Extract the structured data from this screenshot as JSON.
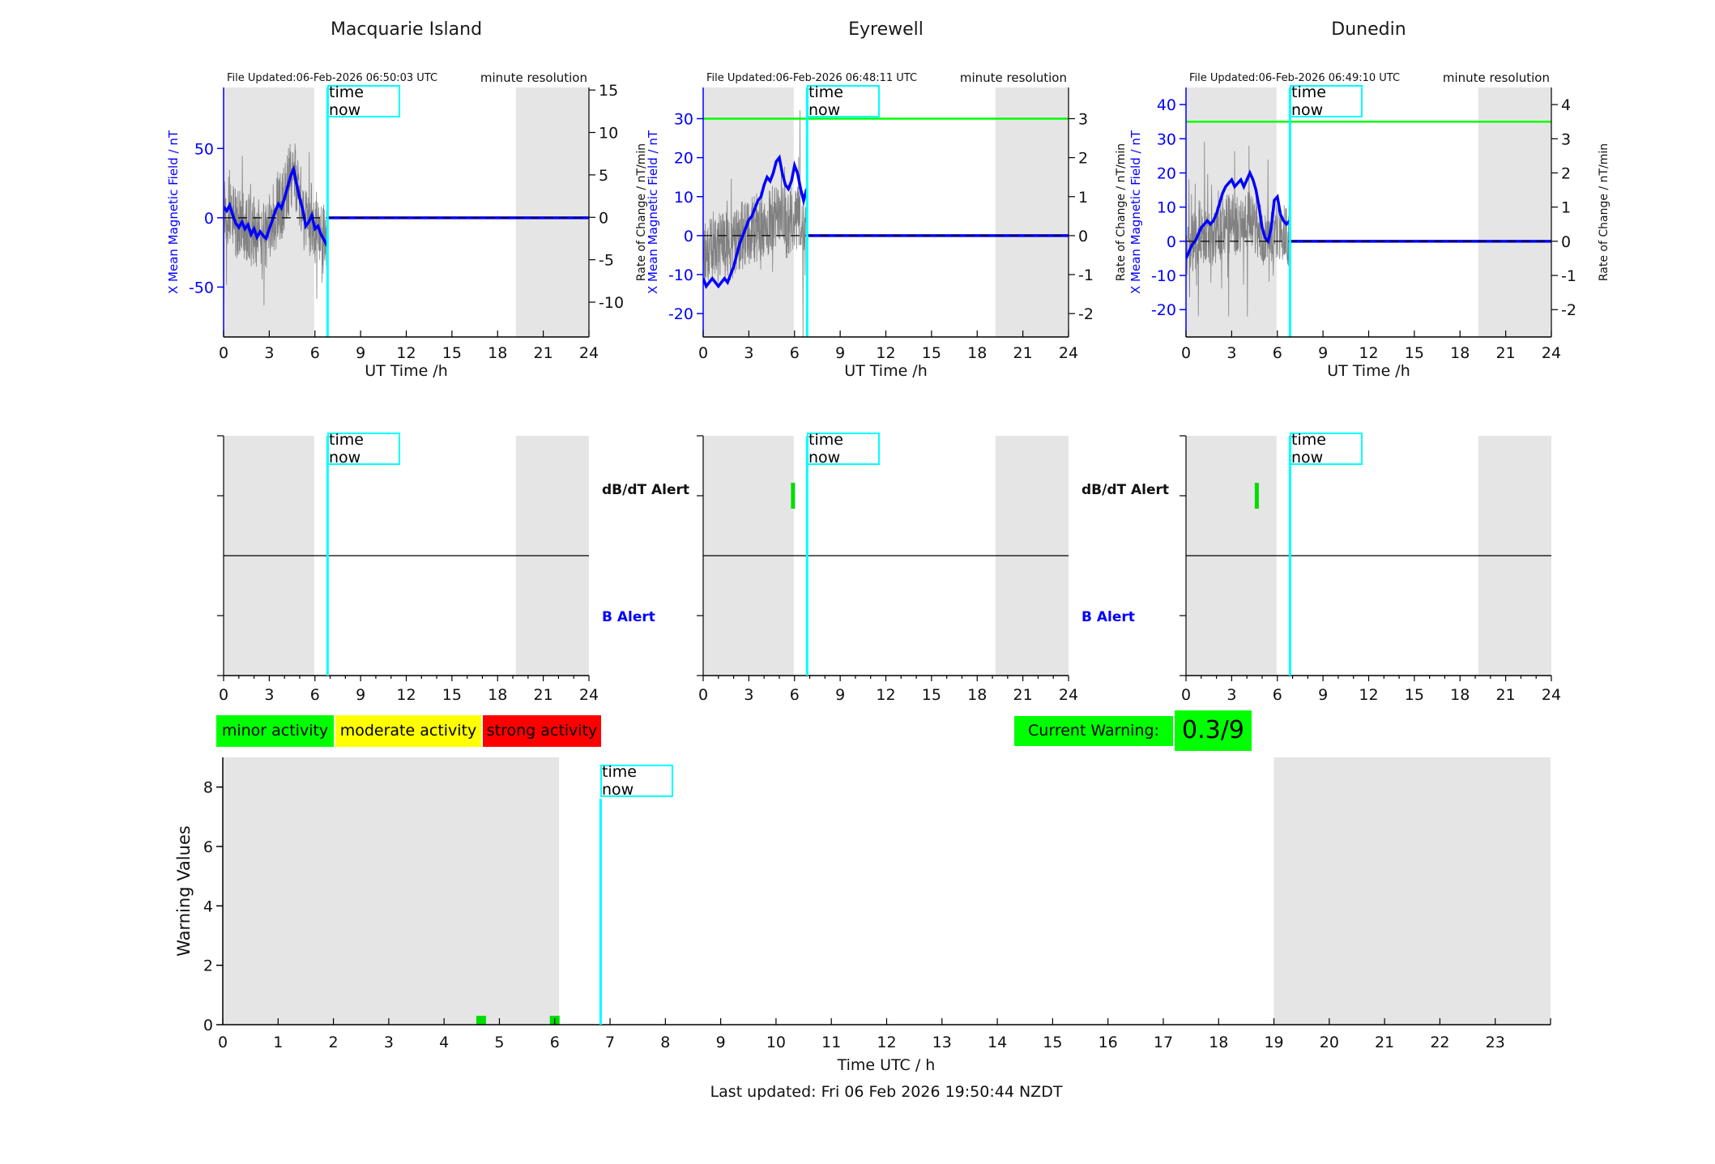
{
  "page": {
    "time_now_label": "time now",
    "footer": {
      "last_updated": "Last updated: Fri 06 Feb 2026 19:50:44 NZDT"
    }
  },
  "chart_data": {
    "type": "line",
    "xlabel": "UT Time /h",
    "x_ticks": [
      0,
      3,
      6,
      9,
      12,
      15,
      18,
      21,
      24
    ],
    "time_now_utc_h": 6.83,
    "shaded_night_hours": [
      [
        0,
        5.95
      ],
      [
        19.2,
        24
      ]
    ],
    "colors": {
      "band": "#e5e5e5",
      "noise": "#808080",
      "mean_field": "#0000ff",
      "zero_line": "#000000",
      "threshold_green": "#00ff00",
      "event_green": "#00dd00",
      "bar_green": "#00dd00",
      "time_now_cyan": "#00ffff",
      "legend_minor": "#00ff00",
      "legend_moderate": "#ffff00",
      "legend_strong": "#ff0000",
      "warning_bg": "#00ff00"
    },
    "stations": [
      {
        "name": "Macquarie Island",
        "file_updated": "File Updated:06-Feb-2026 06:50:03 UTC",
        "resolution_note": "minute resolution",
        "left_axis": {
          "label": "X Mean Magnetic Field / nT",
          "ticks": [
            50,
            0,
            -50
          ],
          "lim": [
            -86,
            94
          ]
        },
        "right_axis": {
          "label": "Rate of Change / nT/min",
          "ticks": [
            15,
            10,
            5,
            0,
            -5,
            -10
          ],
          "lim": [
            -14.1,
            15.3
          ]
        },
        "alert_threshold_nT": null,
        "mean_field_series": {
          "x_start": 0,
          "x_step": 0.2,
          "y": [
            8,
            5,
            9,
            2,
            -4,
            -7,
            -3,
            -8,
            -5,
            -12,
            -8,
            -14,
            -10,
            -13,
            -15,
            -8,
            -2,
            5,
            10,
            7,
            14,
            22,
            30,
            35,
            24,
            14,
            6,
            -6,
            -3,
            2,
            -8,
            -6,
            -12,
            -16,
            -20
          ]
        },
        "value_after_time_now": 0,
        "noise": {
          "seed": 13,
          "amp": 26,
          "spike_amp": 50,
          "spike_prob": 0.06,
          "follow": 1.0
        },
        "alert_panel": {
          "dbdt_label": "dB/dT Alert",
          "b_label": "B Alert",
          "show_labels": true,
          "dbdt_alert_hours": [],
          "b_alert_hours": []
        }
      },
      {
        "name": "Eyrewell",
        "file_updated": "File Updated:06-Feb-2026 06:48:11 UTC",
        "resolution_note": "minute resolution",
        "left_axis": {
          "label": "X Mean Magnetic Field / nT",
          "ticks": [
            30,
            20,
            10,
            0,
            -10,
            -20
          ],
          "lim": [
            -26,
            38
          ]
        },
        "right_axis": {
          "label": "Rate of Change / nT/min",
          "ticks": [
            3,
            2,
            1,
            0,
            -1,
            -2
          ],
          "lim": [
            -2.6,
            3.8
          ]
        },
        "alert_threshold_nT": 30,
        "mean_field_series": {
          "x_start": 0,
          "x_step": 0.2,
          "y": [
            -11,
            -13,
            -12,
            -11,
            -12,
            -13,
            -12,
            -11,
            -12,
            -10,
            -8,
            -5,
            -2,
            0,
            2,
            4,
            5,
            7,
            9,
            10,
            13,
            15,
            14,
            16,
            19,
            20,
            16,
            13,
            12,
            14,
            18,
            16,
            12,
            9,
            12
          ]
        },
        "value_after_time_now": 0,
        "noise": {
          "seed": 29,
          "amp": 9,
          "spike_amp": 22,
          "spike_prob": 0.05,
          "follow": 0.25
        },
        "alert_panel": {
          "dbdt_label": "dB/dT Alert",
          "b_label": "B Alert",
          "show_labels": true,
          "dbdt_alert_hours": [
            5.9
          ],
          "b_alert_hours": []
        }
      },
      {
        "name": "Dunedin",
        "file_updated": "File Updated:06-Feb-2026 06:49:10 UTC",
        "resolution_note": "minute resolution",
        "left_axis": {
          "label": "X Mean Magnetic Field / nT",
          "ticks": [
            40,
            30,
            20,
            10,
            0,
            -10,
            -20
          ],
          "lim": [
            -28,
            45
          ]
        },
        "right_axis": {
          "label": "Rate of Change / nT/min",
          "ticks": [
            4,
            3,
            2,
            1,
            0,
            -1,
            -2
          ],
          "lim": [
            -2.8,
            4.5
          ]
        },
        "alert_threshold_nT": 35,
        "mean_field_series": {
          "x_start": 0,
          "x_step": 0.2,
          "y": [
            -5,
            -3,
            -1,
            0,
            2,
            4,
            5,
            6,
            5,
            6,
            8,
            11,
            14,
            16,
            17,
            18,
            16,
            17,
            18,
            16,
            18,
            20,
            18,
            15,
            10,
            4,
            1,
            0,
            4,
            12,
            13,
            8,
            6,
            5,
            6
          ]
        },
        "value_after_time_now": 0,
        "noise": {
          "seed": 47,
          "amp": 9,
          "spike_amp": 26,
          "spike_prob": 0.06,
          "follow": 0.3
        },
        "alert_panel": {
          "dbdt_label": "dB/dT Alert",
          "b_label": "B Alert",
          "show_labels": false,
          "dbdt_alert_hours": [
            4.65
          ],
          "b_alert_hours": []
        }
      }
    ],
    "activity_legend": [
      {
        "label": "minor activity",
        "color": "#00ff00"
      },
      {
        "label": "moderate activity",
        "color": "#ffff00"
      },
      {
        "label": "strong activity",
        "color": "#ff0000"
      }
    ],
    "current_warning": {
      "label": "Current Warning:",
      "value": "0.3/9"
    },
    "warning_chart": {
      "type": "bar",
      "ylabel": "Warning Values",
      "xlabel": "Time UTC / h",
      "ylim": [
        0,
        9
      ],
      "y_ticks": [
        0,
        2,
        4,
        6,
        8
      ],
      "x_tick_labels": [
        0,
        1,
        2,
        3,
        4,
        5,
        6,
        7,
        8,
        9,
        10,
        11,
        12,
        13,
        14,
        15,
        16,
        17,
        18,
        19,
        20,
        21,
        22,
        23
      ],
      "bars": [
        {
          "x": 4.67,
          "value": 0.3
        },
        {
          "x": 6.0,
          "value": 0.3
        }
      ],
      "shaded_night_hours": [
        [
          0,
          6.08
        ],
        [
          19,
          24
        ]
      ],
      "time_now_utc_h": 6.83
    }
  }
}
